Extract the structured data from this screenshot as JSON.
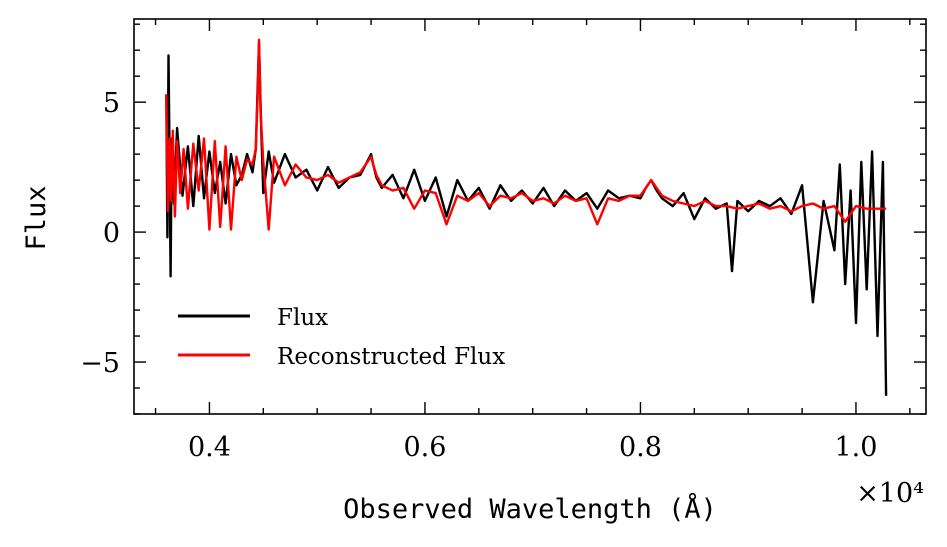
{
  "chart_data": {
    "type": "line",
    "title": "",
    "xlabel": "Observed Wavelength (Å)",
    "ylabel": "Flux",
    "x_multiplier": "×10⁴",
    "xlim": [
      3300,
      10650
    ],
    "ylim": [
      -7.0,
      8.2
    ],
    "x_ticks": [
      {
        "value": 4000,
        "label": "0.4"
      },
      {
        "value": 6000,
        "label": "0.6"
      },
      {
        "value": 8000,
        "label": "0.8"
      },
      {
        "value": 10000,
        "label": "1.0"
      }
    ],
    "y_ticks": [
      {
        "value": -5,
        "label": "−5"
      },
      {
        "value": 0,
        "label": "0"
      },
      {
        "value": 5,
        "label": "5"
      }
    ],
    "grid": false,
    "legend_position": "lower-left",
    "series": [
      {
        "name": "Flux",
        "color": "#000000",
        "x": [
          3600,
          3610,
          3620,
          3630,
          3640,
          3650,
          3670,
          3700,
          3750,
          3800,
          3850,
          3900,
          3950,
          4000,
          4050,
          4100,
          4150,
          4200,
          4250,
          4300,
          4350,
          4400,
          4430,
          4460,
          4480,
          4500,
          4550,
          4600,
          4700,
          4800,
          4900,
          5000,
          5100,
          5200,
          5300,
          5400,
          5450,
          5500,
          5520,
          5550,
          5600,
          5700,
          5800,
          5900,
          6000,
          6100,
          6200,
          6300,
          6400,
          6500,
          6600,
          6700,
          6800,
          6900,
          7000,
          7100,
          7200,
          7300,
          7400,
          7500,
          7600,
          7700,
          7800,
          7900,
          8000,
          8050,
          8100,
          8150,
          8200,
          8300,
          8400,
          8500,
          8600,
          8700,
          8800,
          8850,
          8900,
          9000,
          9100,
          9200,
          9300,
          9400,
          9500,
          9600,
          9700,
          9800,
          9850,
          9900,
          9950,
          10000,
          10050,
          10100,
          10150,
          10200,
          10250,
          10280
        ],
        "values": [
          5.3,
          -0.2,
          6.8,
          2.8,
          -1.7,
          3.6,
          1.1,
          4.0,
          1.4,
          3.3,
          1.0,
          3.7,
          1.3,
          3.1,
          1.5,
          2.7,
          1.1,
          3.0,
          1.8,
          2.2,
          3.0,
          2.3,
          3.2,
          7.3,
          4.0,
          1.5,
          3.1,
          1.9,
          3.0,
          2.1,
          2.4,
          1.6,
          2.5,
          1.7,
          2.1,
          2.2,
          2.6,
          3.0,
          2.6,
          2.1,
          1.7,
          2.2,
          1.3,
          2.4,
          1.2,
          2.1,
          0.6,
          2.0,
          1.2,
          1.7,
          0.9,
          1.8,
          1.2,
          1.6,
          1.1,
          1.7,
          1.0,
          1.6,
          1.2,
          1.5,
          0.9,
          1.6,
          1.3,
          1.4,
          1.3,
          1.7,
          2.0,
          1.6,
          1.3,
          1.0,
          1.5,
          0.5,
          1.3,
          0.9,
          1.1,
          -1.5,
          1.2,
          0.8,
          1.2,
          1.0,
          1.3,
          0.7,
          1.8,
          -2.7,
          1.2,
          -0.7,
          2.6,
          -2.0,
          1.6,
          -3.5,
          2.7,
          -2.2,
          3.1,
          -4.0,
          2.7,
          -6.3
        ]
      },
      {
        "name": "Reconstructed Flux",
        "color": "#ff0000",
        "x": [
          3600,
          3615,
          3630,
          3645,
          3660,
          3680,
          3700,
          3730,
          3760,
          3800,
          3850,
          3900,
          3950,
          4000,
          4050,
          4100,
          4150,
          4200,
          4250,
          4300,
          4350,
          4400,
          4430,
          4450,
          4460,
          4475,
          4500,
          4550,
          4600,
          4700,
          4800,
          4900,
          5000,
          5100,
          5200,
          5300,
          5400,
          5450,
          5500,
          5520,
          5550,
          5600,
          5700,
          5800,
          5900,
          6000,
          6100,
          6200,
          6300,
          6400,
          6500,
          6600,
          6700,
          6800,
          6900,
          7000,
          7100,
          7200,
          7300,
          7400,
          7500,
          7600,
          7700,
          7800,
          7900,
          8000,
          8050,
          8100,
          8150,
          8200,
          8300,
          8400,
          8500,
          8600,
          8700,
          8800,
          8900,
          9000,
          9100,
          9200,
          9300,
          9400,
          9500,
          9600,
          9700,
          9800,
          9900,
          10000,
          10100,
          10200,
          10280
        ],
        "values": [
          5.3,
          0.8,
          3.6,
          1.2,
          3.9,
          0.6,
          3.5,
          1.5,
          3.2,
          0.9,
          3.4,
          1.6,
          3.6,
          0.1,
          3.5,
          0.2,
          3.3,
          0.1,
          2.9,
          2.0,
          2.8,
          2.6,
          3.2,
          5.5,
          7.4,
          4.6,
          2.7,
          0.1,
          2.9,
          1.8,
          2.6,
          2.1,
          2.0,
          2.2,
          1.9,
          2.1,
          2.3,
          2.6,
          2.9,
          2.6,
          2.2,
          1.8,
          1.6,
          1.7,
          0.9,
          1.6,
          1.5,
          0.3,
          1.4,
          1.2,
          1.5,
          1.0,
          1.4,
          1.3,
          1.5,
          1.2,
          1.3,
          1.1,
          1.4,
          1.2,
          1.3,
          0.3,
          1.3,
          1.2,
          1.4,
          1.4,
          1.7,
          2.0,
          1.7,
          1.4,
          1.2,
          1.1,
          1.0,
          1.2,
          1.0,
          1.0,
          0.9,
          1.0,
          1.1,
          0.9,
          1.0,
          0.8,
          1.0,
          1.1,
          0.9,
          1.0,
          0.4,
          1.0,
          0.9,
          0.9,
          0.9
        ]
      }
    ]
  }
}
